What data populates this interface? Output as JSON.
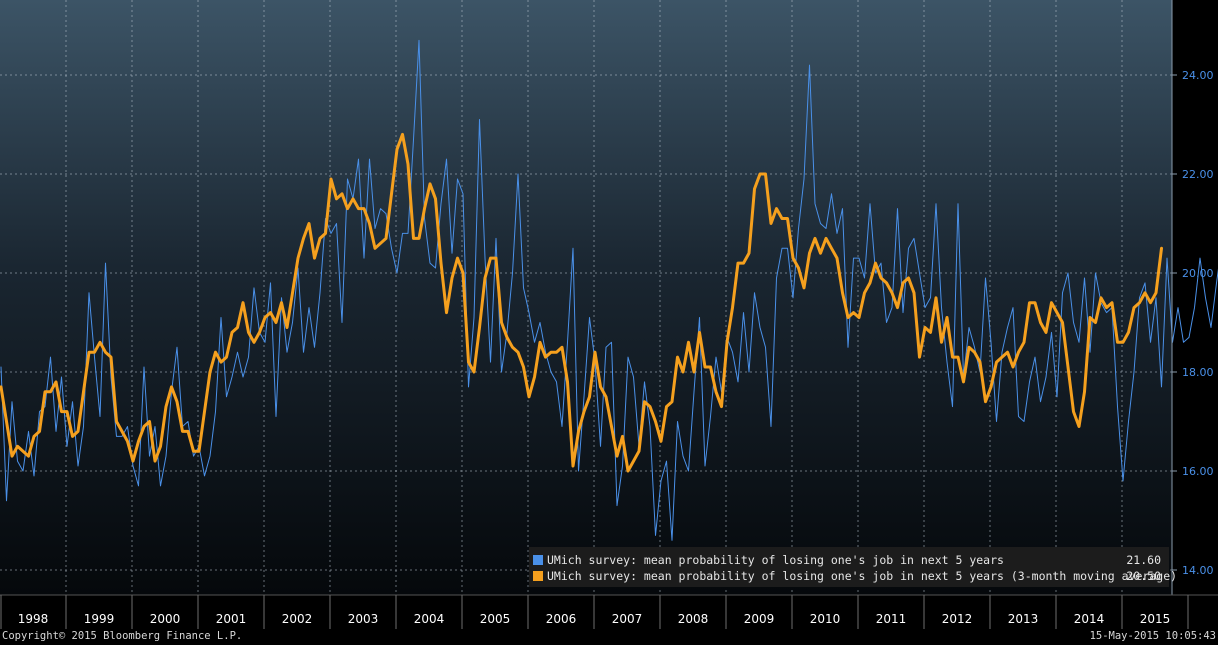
{
  "chart_data": {
    "type": "line",
    "title": "",
    "xlabel": "",
    "ylabel": "",
    "x_start": "1998-01",
    "x_end": "2015-05",
    "ylim": [
      13.6,
      25.0
    ],
    "yticks": [
      14.0,
      16.0,
      18.0,
      20.0,
      22.0,
      24.0
    ],
    "ytick_labels": [
      "14.00",
      "16.00",
      "18.00",
      "20.00",
      "22.00",
      "24.00"
    ],
    "xtick_labels": [
      "1998",
      "1999",
      "2000",
      "2001",
      "2002",
      "2003",
      "2004",
      "2005",
      "2006",
      "2007",
      "2008",
      "2009",
      "2010",
      "2011",
      "2012",
      "2013",
      "2014",
      "2015"
    ],
    "grid": true,
    "legend_position": "bottom-right",
    "series": [
      {
        "name": "UMich survey: mean probability of losing one's job in next 5 years",
        "color": "#4a90e8",
        "last_value": "21.60",
        "values": [
          18.1,
          15.4,
          17.4,
          16.2,
          16.0,
          16.8,
          15.9,
          17.2,
          17.3,
          18.3,
          16.8,
          17.9,
          16.5,
          17.4,
          16.1,
          16.9,
          19.6,
          18.3,
          17.1,
          20.2,
          17.9,
          16.7,
          16.7,
          16.9,
          16.1,
          15.7,
          18.1,
          16.3,
          16.9,
          15.7,
          16.3,
          17.6,
          18.5,
          16.9,
          17.0,
          16.3,
          16.5,
          15.9,
          16.3,
          17.2,
          19.1,
          17.5,
          17.9,
          18.4,
          17.9,
          18.3,
          19.7,
          18.8,
          18.6,
          19.8,
          17.1,
          19.5,
          18.4,
          19.0,
          20.1,
          18.4,
          19.3,
          18.5,
          19.6,
          21.1,
          20.8,
          21.0,
          19.0,
          21.9,
          21.5,
          22.3,
          20.3,
          22.3,
          20.9,
          21.3,
          21.2,
          20.5,
          20.0,
          20.8,
          20.8,
          22.7,
          24.7,
          21.1,
          20.2,
          20.1,
          21.4,
          22.3,
          20.4,
          21.9,
          21.6,
          17.7,
          19.1,
          23.1,
          20.3,
          18.2,
          20.7,
          18.0,
          18.8,
          20.0,
          22.0,
          19.7,
          19.2,
          18.6,
          19.0,
          18.4,
          18.0,
          17.8,
          16.9,
          18.6,
          20.5,
          16.0,
          17.5,
          19.1,
          18.2,
          16.5,
          18.5,
          18.6,
          15.3,
          16.1,
          18.3,
          17.9,
          16.5,
          17.8,
          16.9,
          14.7,
          15.8,
          16.2,
          14.6,
          17.0,
          16.3,
          16.0,
          17.6,
          19.1,
          16.1,
          17.1,
          18.3,
          17.6,
          18.7,
          18.4,
          17.8,
          19.2,
          18.0,
          19.6,
          18.9,
          18.5,
          16.9,
          19.9,
          20.5,
          20.5,
          19.5,
          20.9,
          21.9,
          24.2,
          21.4,
          21.0,
          20.9,
          21.6,
          20.8,
          21.3,
          18.5,
          20.3,
          20.3,
          19.9,
          21.4,
          20.0,
          20.2,
          19.0,
          19.3,
          21.3,
          19.2,
          20.5,
          20.7,
          20.0,
          19.3,
          19.5,
          21.4,
          19.3,
          18.2,
          17.3,
          21.4,
          17.9,
          18.9,
          18.5,
          18.0,
          19.9,
          18.6,
          17.0,
          18.4,
          18.9,
          19.3,
          17.1,
          17.0,
          17.8,
          18.3,
          17.4,
          17.9,
          18.8,
          17.5,
          19.6,
          20.0,
          19.0,
          18.6,
          19.9,
          18.4,
          20.0,
          19.4,
          19.2,
          19.3,
          17.3,
          15.8,
          17.0,
          18.0,
          19.5,
          19.8,
          18.6,
          19.5,
          17.7,
          20.3,
          18.6,
          19.3,
          18.6,
          18.7,
          19.3,
          20.3,
          19.5,
          18.9,
          19.8,
          20.6,
          21.6
        ]
      },
      {
        "name": "UMich survey: mean probability of losing one's job in next 5 years (3-month moving average)",
        "color": "#f5a01e",
        "last_value": "20.50",
        "values": [
          17.7,
          17.0,
          16.3,
          16.5,
          16.4,
          16.3,
          16.7,
          16.8,
          17.6,
          17.6,
          17.8,
          17.2,
          17.2,
          16.7,
          16.8,
          17.6,
          18.4,
          18.4,
          18.6,
          18.4,
          18.3,
          17.0,
          16.8,
          16.6,
          16.2,
          16.6,
          16.9,
          17.0,
          16.2,
          16.5,
          17.3,
          17.7,
          17.4,
          16.8,
          16.8,
          16.4,
          16.4,
          17.2,
          18.0,
          18.4,
          18.2,
          18.3,
          18.8,
          18.9,
          19.4,
          18.8,
          18.6,
          18.8,
          19.1,
          19.2,
          19.0,
          19.4,
          18.9,
          19.6,
          20.3,
          20.7,
          21.0,
          20.3,
          20.7,
          20.8,
          21.9,
          21.5,
          21.6,
          21.3,
          21.5,
          21.3,
          21.3,
          21.0,
          20.5,
          20.6,
          20.7,
          21.6,
          22.5,
          22.8,
          22.2,
          20.7,
          20.7,
          21.3,
          21.8,
          21.5,
          20.2,
          19.2,
          19.9,
          20.3,
          20.0,
          18.2,
          18.0,
          18.9,
          19.9,
          20.3,
          20.3,
          19.0,
          18.7,
          18.5,
          18.4,
          18.1,
          17.5,
          17.9,
          18.6,
          18.3,
          18.4,
          18.4,
          18.5,
          17.8,
          16.1,
          16.8,
          17.2,
          17.5,
          18.4,
          17.7,
          17.5,
          16.9,
          16.3,
          16.7,
          16.0,
          16.2,
          16.4,
          17.4,
          17.3,
          17.0,
          16.6,
          17.3,
          17.4,
          18.3,
          18.0,
          18.6,
          18.0,
          18.8,
          18.1,
          18.1,
          17.6,
          17.3,
          18.6,
          19.3,
          20.2,
          20.2,
          20.4,
          21.7,
          22.0,
          22.0,
          21.0,
          21.3,
          21.1,
          21.1,
          20.3,
          20.1,
          19.7,
          20.4,
          20.7,
          20.4,
          20.7,
          20.5,
          20.3,
          19.6,
          19.1,
          19.2,
          19.1,
          19.6,
          19.8,
          20.2,
          19.9,
          19.8,
          19.6,
          19.3,
          19.8,
          19.9,
          19.6,
          18.3,
          18.9,
          18.8,
          19.5,
          18.6,
          19.1,
          18.3,
          18.3,
          17.8,
          18.5,
          18.4,
          18.2,
          17.4,
          17.7,
          18.2,
          18.3,
          18.4,
          18.1,
          18.4,
          18.6,
          19.4,
          19.4,
          19.0,
          18.8,
          19.4,
          19.2,
          19.0,
          18.1,
          17.2,
          16.9,
          17.6,
          19.1,
          19.0,
          19.5,
          19.3,
          19.4,
          18.6,
          18.6,
          18.8,
          19.3,
          19.4,
          19.6,
          19.4,
          19.6,
          20.5
        ]
      }
    ]
  },
  "footer": {
    "copyright": "Copyright© 2015 Bloomberg Finance L.P.",
    "timestamp": "15-May-2015 10:05:43"
  }
}
